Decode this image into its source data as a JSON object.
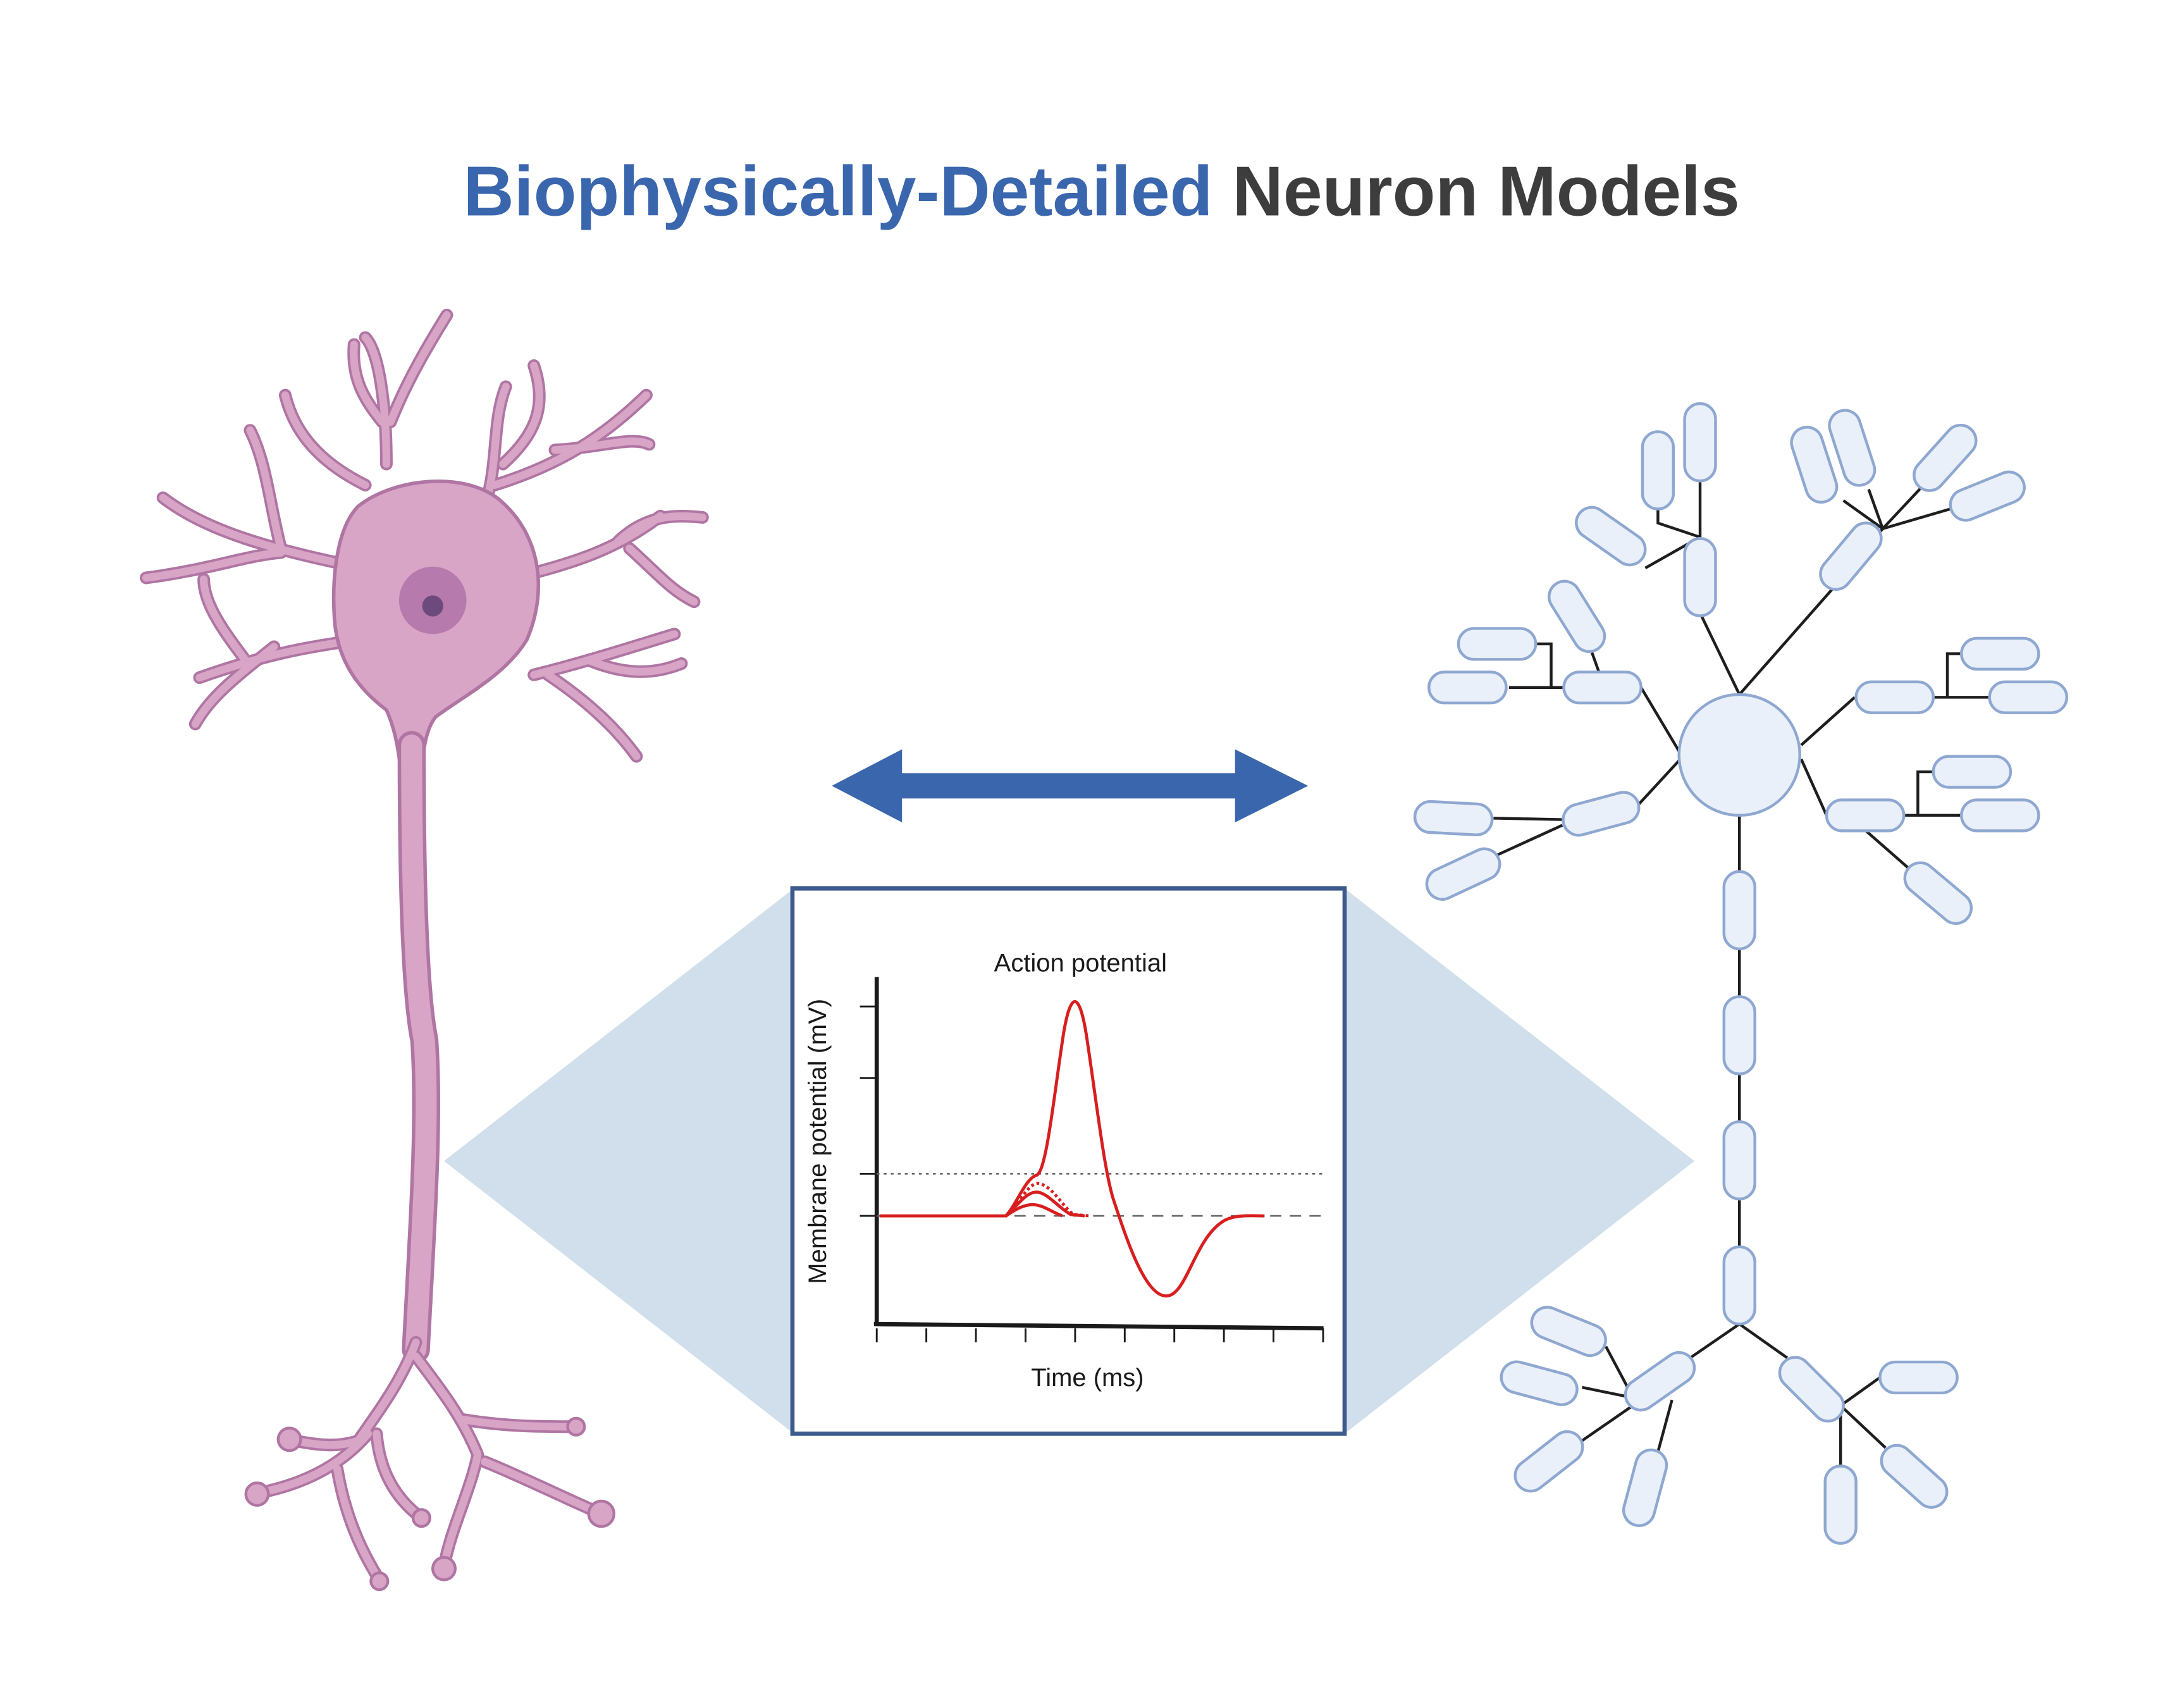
{
  "title": {
    "part1": "Biophysically-Detailed",
    "part2": "Neuron Models",
    "color1": "#3a66ad",
    "color2": "#3d3d3d"
  },
  "arrow": {
    "color": "#3a66ad",
    "type": "double-headed"
  },
  "neuron": {
    "fill": "#d8a5c7",
    "stroke": "#b075a3",
    "nucleus": "#b77aac",
    "nucleolus": "#6d4a7c"
  },
  "model": {
    "fill": "#e9f0f9",
    "stroke": "#8fa8d1",
    "line": "#1e1e1e"
  },
  "inset": {
    "frame_color": "#3c5a8c",
    "projection_color": "#d1dfec",
    "title": "Action potential",
    "xlabel": "Time (ms)",
    "ylabel": "Membrane potential (mV)"
  },
  "chart_data": {
    "type": "line",
    "title": "Action potential",
    "xlabel": "Time (ms)",
    "ylabel": "Membrane potential (mV)",
    "curve_color": "#d81e1e",
    "n_x_ticks": 10,
    "n_y_ticks": 4,
    "reference_lines": [
      "threshold",
      "resting"
    ],
    "series": [
      {
        "style": "solid",
        "peak": "action potential with undershoot"
      },
      {
        "style": "dotted",
        "peak": "near threshold"
      },
      {
        "style": "solid",
        "peak": "subthreshold"
      },
      {
        "style": "solid",
        "peak": "subthreshold"
      }
    ]
  }
}
